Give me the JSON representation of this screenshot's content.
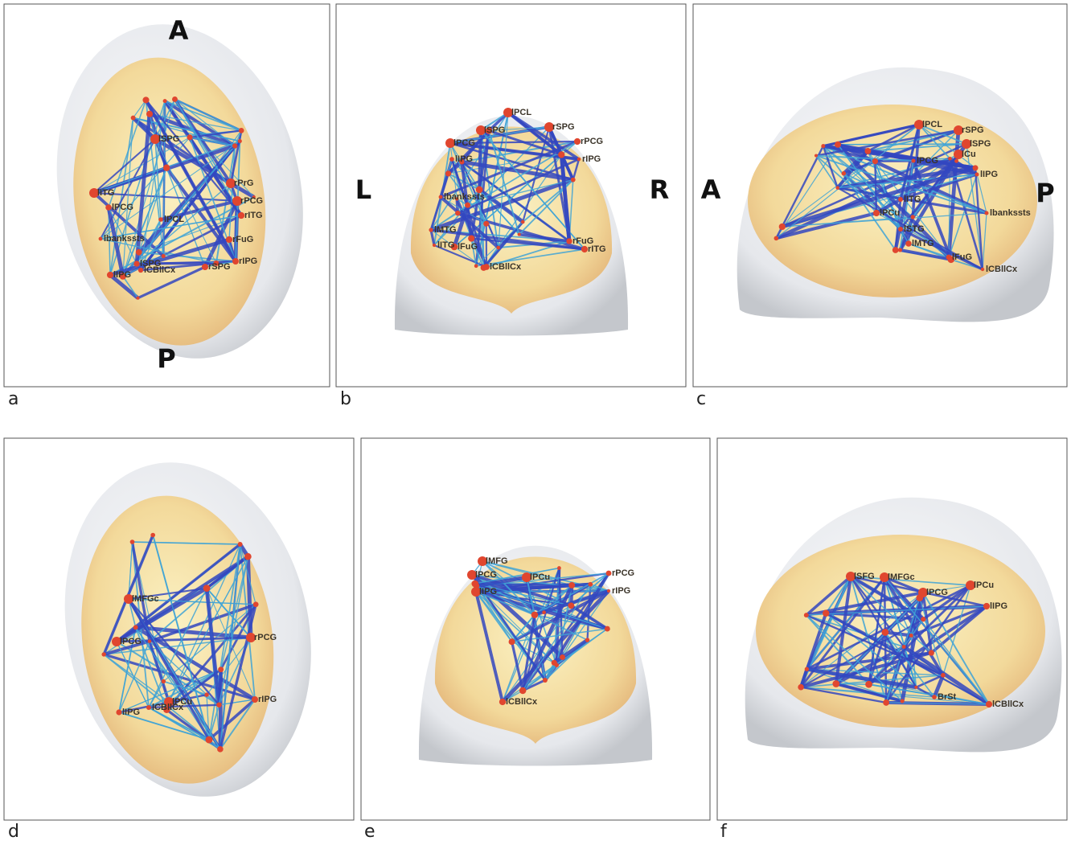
{
  "panels": [
    {
      "letter": "a",
      "orientation": [
        "A",
        "P"
      ],
      "labels": [
        "lSPG",
        "rPrG",
        "rPCG",
        "lITG",
        "lPCG",
        "lPCL",
        "rITG",
        "lbankssts",
        "rFuG",
        "lSPG",
        "rSPG",
        "lCBllCx",
        "rIPG",
        "lIPG"
      ]
    },
    {
      "letter": "b",
      "orientation": [
        "L",
        "R"
      ],
      "labels": [
        "lPCL",
        "lSPG",
        "rSPG",
        "lPCG",
        "rPCG",
        "lIPG",
        "rIPG",
        "lbankssts",
        "lMTG",
        "lITG",
        "lFuG",
        "lCBllCx",
        "rFuG",
        "rITG"
      ]
    },
    {
      "letter": "c",
      "orientation": [
        "A",
        "P"
      ],
      "labels": [
        "lPCL",
        "rSPG",
        "lSPG",
        "lCu",
        "lPCG",
        "lIPG",
        "lITG",
        "lPCu",
        "lbankssts",
        "lSTG",
        "lMTG",
        "lFuG",
        "lCBllCx"
      ]
    },
    {
      "letter": "d",
      "orientation": [],
      "labels": [
        "lMFGc",
        "lPCG",
        "rPCG",
        "lPCu",
        "lCBllCx",
        "lIPG",
        "rIPG"
      ]
    },
    {
      "letter": "e",
      "orientation": [],
      "labels": [
        "lMFG",
        "lPCG",
        "lIPG",
        "lPCu",
        "rPCG",
        "rIPG",
        "lCBllCx"
      ]
    },
    {
      "letter": "f",
      "orientation": [],
      "labels": [
        "lSFG",
        "lMFGc",
        "lPCG",
        "lPCu",
        "lIPG",
        "BrSt",
        "lCBllCx"
      ]
    }
  ]
}
